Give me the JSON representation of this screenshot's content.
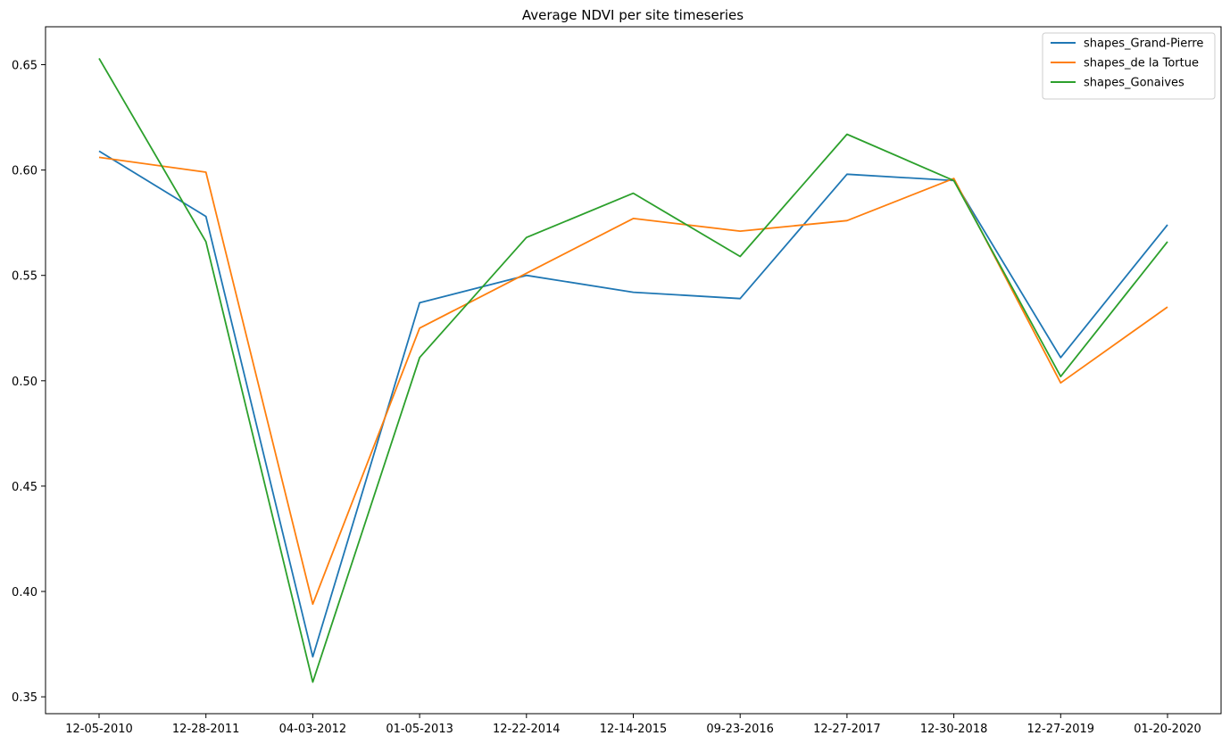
{
  "chart_data": {
    "type": "line",
    "title": "Average NDVI per site timeseries",
    "xlabel": "",
    "ylabel": "",
    "categories": [
      "12-05-2010",
      "12-28-2011",
      "04-03-2012",
      "01-05-2013",
      "12-22-2014",
      "12-14-2015",
      "09-23-2016",
      "12-27-2017",
      "12-30-2018",
      "12-27-2019",
      "01-20-2020"
    ],
    "ylim": [
      0.342,
      0.668
    ],
    "yticks": [
      "0.35",
      "0.40",
      "0.45",
      "0.50",
      "0.55",
      "0.60",
      "0.65"
    ],
    "grid": false,
    "legend_position": "top-right",
    "series": [
      {
        "name": "shapes_Grand-Pierre",
        "color": "#1f77b4",
        "values": [
          0.609,
          0.578,
          0.369,
          0.537,
          0.55,
          0.542,
          0.539,
          0.598,
          0.595,
          0.511,
          0.574
        ]
      },
      {
        "name": "shapes_de la Tortue",
        "color": "#ff7f0e",
        "values": [
          0.606,
          0.599,
          0.394,
          0.525,
          0.551,
          0.577,
          0.571,
          0.576,
          0.596,
          0.499,
          0.535
        ]
      },
      {
        "name": "shapes_Gonaives",
        "color": "#2ca02c",
        "values": [
          0.653,
          0.566,
          0.357,
          0.511,
          0.568,
          0.589,
          0.559,
          0.617,
          0.595,
          0.502,
          0.566
        ]
      }
    ]
  }
}
